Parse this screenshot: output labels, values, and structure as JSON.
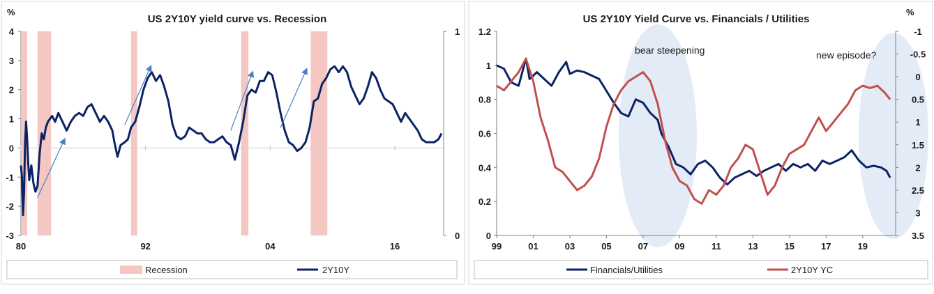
{
  "chart_data": [
    {
      "type": "line",
      "title": "US 2Y10Y yield curve vs. Recession",
      "ylabel_left": "%",
      "ylim": [
        -3,
        4
      ],
      "yticks": [
        "-3",
        "-2",
        "-1",
        "0",
        "1",
        "2",
        "3",
        "4"
      ],
      "y2lim": [
        0,
        1
      ],
      "y2ticks": [
        "0",
        "1"
      ],
      "xlim": [
        1980,
        2020.7
      ],
      "xticks": [
        {
          "x": 1980,
          "label": "80"
        },
        {
          "x": 1992,
          "label": "92"
        },
        {
          "x": 2004,
          "label": "04"
        },
        {
          "x": 2016,
          "label": "16"
        }
      ],
      "recessions": [
        {
          "start": 1980.1,
          "end": 1980.6
        },
        {
          "start": 1981.6,
          "end": 1982.9
        },
        {
          "start": 1990.6,
          "end": 1991.2
        },
        {
          "start": 2001.2,
          "end": 2001.9
        },
        {
          "start": 2007.9,
          "end": 2009.5
        }
      ],
      "arrows": [
        {
          "from": [
            1981.6,
            -1.7
          ],
          "to": [
            1984.2,
            0.3
          ]
        },
        {
          "from": [
            1990.0,
            0.8
          ],
          "to": [
            1992.5,
            2.8
          ]
        },
        {
          "from": [
            2000.2,
            0.6
          ],
          "to": [
            2002.3,
            2.6
          ]
        },
        {
          "from": [
            2005.0,
            0.7
          ],
          "to": [
            2007.5,
            2.7
          ]
        }
      ],
      "series": [
        {
          "name": "2Y10Y",
          "color": "#0b2265",
          "points": [
            [
              1980.0,
              -0.6
            ],
            [
              1980.1,
              -1.0
            ],
            [
              1980.2,
              -2.3
            ],
            [
              1980.3,
              -1.5
            ],
            [
              1980.4,
              0.2
            ],
            [
              1980.5,
              0.9
            ],
            [
              1980.6,
              0.3
            ],
            [
              1980.7,
              -0.5
            ],
            [
              1980.8,
              -1.1
            ],
            [
              1981.0,
              -0.6
            ],
            [
              1981.2,
              -1.2
            ],
            [
              1981.4,
              -1.5
            ],
            [
              1981.6,
              -1.3
            ],
            [
              1981.8,
              -0.2
            ],
            [
              1982.0,
              0.5
            ],
            [
              1982.2,
              0.3
            ],
            [
              1982.4,
              0.7
            ],
            [
              1982.6,
              0.9
            ],
            [
              1982.8,
              1.0
            ],
            [
              1983.0,
              1.1
            ],
            [
              1983.3,
              0.9
            ],
            [
              1983.6,
              1.2
            ],
            [
              1984.0,
              0.9
            ],
            [
              1984.4,
              0.6
            ],
            [
              1984.8,
              0.9
            ],
            [
              1985.2,
              1.1
            ],
            [
              1985.6,
              1.2
            ],
            [
              1986.0,
              1.1
            ],
            [
              1986.4,
              1.4
            ],
            [
              1986.8,
              1.5
            ],
            [
              1987.2,
              1.2
            ],
            [
              1987.6,
              0.9
            ],
            [
              1988.0,
              1.1
            ],
            [
              1988.4,
              0.9
            ],
            [
              1988.8,
              0.6
            ],
            [
              1989.0,
              0.2
            ],
            [
              1989.3,
              -0.3
            ],
            [
              1989.6,
              0.1
            ],
            [
              1990.0,
              0.2
            ],
            [
              1990.3,
              0.3
            ],
            [
              1990.6,
              0.7
            ],
            [
              1991.0,
              0.9
            ],
            [
              1991.4,
              1.4
            ],
            [
              1991.8,
              2.0
            ],
            [
              1992.2,
              2.4
            ],
            [
              1992.6,
              2.6
            ],
            [
              1993.0,
              2.3
            ],
            [
              1993.4,
              2.5
            ],
            [
              1993.8,
              2.1
            ],
            [
              1994.2,
              1.6
            ],
            [
              1994.6,
              0.8
            ],
            [
              1995.0,
              0.4
            ],
            [
              1995.4,
              0.3
            ],
            [
              1995.8,
              0.4
            ],
            [
              1996.2,
              0.7
            ],
            [
              1996.6,
              0.6
            ],
            [
              1997.0,
              0.5
            ],
            [
              1997.4,
              0.5
            ],
            [
              1997.8,
              0.3
            ],
            [
              1998.2,
              0.2
            ],
            [
              1998.6,
              0.2
            ],
            [
              1999.0,
              0.3
            ],
            [
              1999.4,
              0.4
            ],
            [
              1999.8,
              0.2
            ],
            [
              2000.2,
              0.1
            ],
            [
              2000.6,
              -0.4
            ],
            [
              2001.0,
              0.2
            ],
            [
              2001.4,
              0.9
            ],
            [
              2001.8,
              1.8
            ],
            [
              2002.2,
              2.0
            ],
            [
              2002.6,
              1.9
            ],
            [
              2003.0,
              2.3
            ],
            [
              2003.4,
              2.3
            ],
            [
              2003.8,
              2.6
            ],
            [
              2004.2,
              2.5
            ],
            [
              2004.6,
              1.9
            ],
            [
              2005.0,
              1.2
            ],
            [
              2005.4,
              0.6
            ],
            [
              2005.8,
              0.2
            ],
            [
              2006.2,
              0.1
            ],
            [
              2006.6,
              -0.1
            ],
            [
              2007.0,
              0.0
            ],
            [
              2007.4,
              0.2
            ],
            [
              2007.8,
              0.7
            ],
            [
              2008.2,
              1.6
            ],
            [
              2008.6,
              1.7
            ],
            [
              2009.0,
              2.2
            ],
            [
              2009.4,
              2.4
            ],
            [
              2009.8,
              2.7
            ],
            [
              2010.2,
              2.8
            ],
            [
              2010.6,
              2.6
            ],
            [
              2011.0,
              2.8
            ],
            [
              2011.4,
              2.6
            ],
            [
              2011.8,
              2.1
            ],
            [
              2012.2,
              1.8
            ],
            [
              2012.6,
              1.5
            ],
            [
              2013.0,
              1.7
            ],
            [
              2013.4,
              2.1
            ],
            [
              2013.8,
              2.6
            ],
            [
              2014.2,
              2.4
            ],
            [
              2014.6,
              2.0
            ],
            [
              2015.0,
              1.7
            ],
            [
              2015.4,
              1.6
            ],
            [
              2015.8,
              1.5
            ],
            [
              2016.2,
              1.2
            ],
            [
              2016.6,
              0.9
            ],
            [
              2017.0,
              1.2
            ],
            [
              2017.4,
              1.0
            ],
            [
              2017.8,
              0.8
            ],
            [
              2018.2,
              0.6
            ],
            [
              2018.6,
              0.3
            ],
            [
              2019.0,
              0.2
            ],
            [
              2019.4,
              0.2
            ],
            [
              2019.8,
              0.2
            ],
            [
              2020.2,
              0.3
            ],
            [
              2020.5,
              0.5
            ]
          ]
        }
      ],
      "legend": [
        "Recession",
        "2Y10Y"
      ]
    },
    {
      "type": "line",
      "title": "US 2Y10Y Yield Curve vs. Financials / Utilities",
      "ylabel_right": "%",
      "ylim": [
        0,
        1.2
      ],
      "yticks": [
        "0",
        "0.2",
        "0.4",
        "0.6",
        "0.8",
        "1",
        "1.2"
      ],
      "y2lim": [
        3.5,
        -1
      ],
      "y2ticks": [
        "3.5",
        "3",
        "2.5",
        "2",
        "1.5",
        "1",
        "0.5",
        "0",
        "-0.5",
        "-1"
      ],
      "xlim": [
        1999,
        2020.8
      ],
      "xticks": [
        {
          "x": 1999,
          "label": "99"
        },
        {
          "x": 2001,
          "label": "01"
        },
        {
          "x": 2003,
          "label": "03"
        },
        {
          "x": 2005,
          "label": "05"
        },
        {
          "x": 2007,
          "label": "07"
        },
        {
          "x": 2009,
          "label": "09"
        },
        {
          "x": 2011,
          "label": "11"
        },
        {
          "x": 2013,
          "label": "13"
        },
        {
          "x": 2015,
          "label": "15"
        },
        {
          "x": 2017,
          "label": "17"
        },
        {
          "x": 2019,
          "label": "19"
        }
      ],
      "annotations": [
        "bear steepening",
        "new episode?"
      ],
      "series": [
        {
          "name": "Financials/Utilities",
          "axis": "left",
          "color": "#0b2265",
          "points": [
            [
              1999.0,
              1.0
            ],
            [
              1999.4,
              0.98
            ],
            [
              1999.8,
              0.9
            ],
            [
              2000.2,
              0.88
            ],
            [
              2000.6,
              1.04
            ],
            [
              2000.8,
              0.92
            ],
            [
              2001.2,
              0.96
            ],
            [
              2001.6,
              0.92
            ],
            [
              2002.0,
              0.88
            ],
            [
              2002.4,
              0.96
            ],
            [
              2002.8,
              1.02
            ],
            [
              2003.0,
              0.95
            ],
            [
              2003.4,
              0.97
            ],
            [
              2003.8,
              0.96
            ],
            [
              2004.2,
              0.94
            ],
            [
              2004.6,
              0.92
            ],
            [
              2005.0,
              0.85
            ],
            [
              2005.4,
              0.78
            ],
            [
              2005.8,
              0.72
            ],
            [
              2006.2,
              0.7
            ],
            [
              2006.6,
              0.8
            ],
            [
              2007.0,
              0.78
            ],
            [
              2007.4,
              0.72
            ],
            [
              2007.8,
              0.68
            ],
            [
              2008.0,
              0.6
            ],
            [
              2008.4,
              0.52
            ],
            [
              2008.8,
              0.42
            ],
            [
              2009.2,
              0.4
            ],
            [
              2009.6,
              0.36
            ],
            [
              2010.0,
              0.42
            ],
            [
              2010.4,
              0.44
            ],
            [
              2010.8,
              0.4
            ],
            [
              2011.2,
              0.34
            ],
            [
              2011.6,
              0.3
            ],
            [
              2012.0,
              0.34
            ],
            [
              2012.4,
              0.36
            ],
            [
              2012.8,
              0.38
            ],
            [
              2013.2,
              0.35
            ],
            [
              2013.6,
              0.38
            ],
            [
              2014.0,
              0.4
            ],
            [
              2014.4,
              0.42
            ],
            [
              2014.8,
              0.38
            ],
            [
              2015.2,
              0.42
            ],
            [
              2015.6,
              0.4
            ],
            [
              2016.0,
              0.42
            ],
            [
              2016.4,
              0.38
            ],
            [
              2016.8,
              0.44
            ],
            [
              2017.2,
              0.42
            ],
            [
              2017.6,
              0.44
            ],
            [
              2018.0,
              0.46
            ],
            [
              2018.4,
              0.5
            ],
            [
              2018.8,
              0.44
            ],
            [
              2019.2,
              0.4
            ],
            [
              2019.6,
              0.41
            ],
            [
              2020.0,
              0.4
            ],
            [
              2020.3,
              0.38
            ],
            [
              2020.5,
              0.34
            ]
          ]
        },
        {
          "name": "2Y10Y YC",
          "axis": "right",
          "color": "#c0504d",
          "points": [
            [
              1999.0,
              0.2
            ],
            [
              1999.4,
              0.3
            ],
            [
              1999.8,
              0.1
            ],
            [
              2000.2,
              -0.1
            ],
            [
              2000.6,
              -0.4
            ],
            [
              2001.0,
              0.1
            ],
            [
              2001.4,
              0.9
            ],
            [
              2001.8,
              1.4
            ],
            [
              2002.2,
              2.0
            ],
            [
              2002.6,
              2.1
            ],
            [
              2003.0,
              2.3
            ],
            [
              2003.4,
              2.5
            ],
            [
              2003.8,
              2.4
            ],
            [
              2004.2,
              2.2
            ],
            [
              2004.6,
              1.8
            ],
            [
              2005.0,
              1.1
            ],
            [
              2005.4,
              0.6
            ],
            [
              2005.8,
              0.3
            ],
            [
              2006.2,
              0.1
            ],
            [
              2006.6,
              0.0
            ],
            [
              2007.0,
              -0.1
            ],
            [
              2007.4,
              0.1
            ],
            [
              2007.8,
              0.6
            ],
            [
              2008.2,
              1.4
            ],
            [
              2008.6,
              2.0
            ],
            [
              2009.0,
              2.3
            ],
            [
              2009.4,
              2.4
            ],
            [
              2009.8,
              2.7
            ],
            [
              2010.2,
              2.8
            ],
            [
              2010.6,
              2.5
            ],
            [
              2011.0,
              2.6
            ],
            [
              2011.4,
              2.4
            ],
            [
              2011.8,
              2.0
            ],
            [
              2012.2,
              1.8
            ],
            [
              2012.6,
              1.5
            ],
            [
              2013.0,
              1.6
            ],
            [
              2013.4,
              2.1
            ],
            [
              2013.8,
              2.6
            ],
            [
              2014.2,
              2.4
            ],
            [
              2014.6,
              2.0
            ],
            [
              2015.0,
              1.7
            ],
            [
              2015.4,
              1.6
            ],
            [
              2015.8,
              1.5
            ],
            [
              2016.2,
              1.2
            ],
            [
              2016.6,
              0.9
            ],
            [
              2017.0,
              1.2
            ],
            [
              2017.4,
              1.0
            ],
            [
              2017.8,
              0.8
            ],
            [
              2018.2,
              0.6
            ],
            [
              2018.6,
              0.3
            ],
            [
              2019.0,
              0.2
            ],
            [
              2019.4,
              0.25
            ],
            [
              2019.8,
              0.2
            ],
            [
              2020.2,
              0.35
            ],
            [
              2020.5,
              0.5
            ]
          ]
        }
      ],
      "legend": [
        "Financials/Utilities",
        "2Y10Y YC"
      ]
    }
  ]
}
